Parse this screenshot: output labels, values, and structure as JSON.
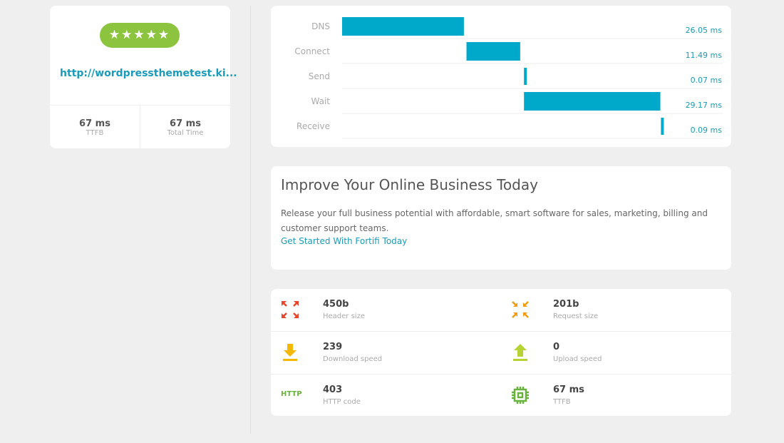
{
  "summary": {
    "rating": "★★★★★",
    "url": "http://wordpressthemetest.ki...",
    "stats": [
      {
        "value": "67 ms",
        "label": "TTFB"
      },
      {
        "value": "67 ms",
        "label": "Total Time"
      }
    ]
  },
  "waterfall": {
    "labels": [
      "DNS",
      "Connect",
      "Send",
      "Wait",
      "Receive"
    ],
    "starts": [
      0,
      26.6,
      38.9,
      38.9,
      68.2
    ],
    "values": [
      26.05,
      11.49,
      0.07,
      29.17,
      0.09
    ],
    "value_labels": [
      "26.05 ms",
      "11.49 ms",
      "0.07 ms",
      "29.17 ms",
      "0.09 ms"
    ],
    "xlim": [
      0,
      68.6
    ],
    "color": "#00a9c9"
  },
  "promo": {
    "title": "Improve Your Online Business Today",
    "body": "Release your full business potential with affordable, smart software for sales, marketing, billing and customer support teams.",
    "link": "Get Started With Fortifi Today"
  },
  "metrics": [
    {
      "value": "450b",
      "label": "Header size"
    },
    {
      "value": "201b",
      "label": "Request size"
    },
    {
      "value": "239",
      "label": "Download speed"
    },
    {
      "value": "0",
      "label": "Upload speed"
    },
    {
      "value": "403",
      "label": "HTTP code",
      "icon": "HTTP"
    },
    {
      "value": "67 ms",
      "label": "TTFB"
    }
  ]
}
